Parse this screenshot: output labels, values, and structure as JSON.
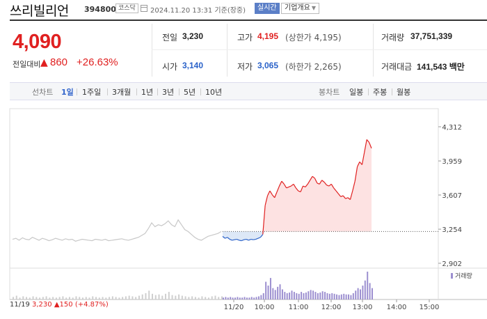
{
  "header": {
    "stock_name": "쓰리빌리언",
    "stock_code": "394800",
    "market": "코스닥",
    "timestamp": "2024.11.20 13:31 기준(장중)",
    "realtime_label": "실시간",
    "company_overview_label": "기업개요"
  },
  "quote": {
    "price": "4,090",
    "change_label": "전일대비",
    "change_direction": "up",
    "change_amount": "860",
    "change_pct": "+26.63%",
    "prev_close_label": "전일",
    "prev_close": "3,230",
    "high_label": "고가",
    "high": "4,195",
    "upper_limit": "(상한가 4,195)",
    "volume_label": "거래량",
    "volume": "37,751,339",
    "open_label": "시가",
    "open": "3,140",
    "low_label": "저가",
    "low": "3,065",
    "lower_limit": "(하한가 2,265)",
    "value_label": "거래대금",
    "trade_value": "141,543 백만"
  },
  "periods": {
    "line_chart_label": "선차트",
    "line_items": [
      "1일",
      "1주일",
      "3개월",
      "1년",
      "3년",
      "5년",
      "10년"
    ],
    "selected": "1일",
    "candle_chart_label": "봉차트",
    "candle_items": [
      "일봉",
      "주봉",
      "월봉"
    ]
  },
  "colors": {
    "up": "#e02020",
    "down": "#2a62c9",
    "volume": "#9c8fd0",
    "prev_day": "#c8c8c8"
  },
  "chart_data": {
    "type": "area",
    "y_ticks": [
      "4,312",
      "3,959",
      "3,607",
      "3,254",
      "2,902"
    ],
    "ylim": [
      2902,
      4312
    ],
    "baseline": 3230,
    "x_ticks": [
      "11/20",
      "10:00",
      "11:00",
      "12:00",
      "13:00",
      "14:00",
      "15:00"
    ],
    "prev_day_label": "11/19",
    "prev_day_close": "3,230",
    "prev_day_change": "150",
    "prev_day_change_pct": "(+4.87%)",
    "volume_label": "거래량",
    "prev_day_series": [
      3150,
      3160,
      3140,
      3165,
      3150,
      3145,
      3170,
      3155,
      3140,
      3160,
      3150,
      3135,
      3145,
      3160,
      3150,
      3140,
      3155,
      3145,
      3150,
      3130,
      3140,
      3150,
      3145,
      3140,
      3135,
      3150,
      3145,
      3140,
      3150,
      3135,
      3140,
      3145,
      3150,
      3155,
      3145,
      3140,
      3150,
      3160,
      3170,
      3190,
      3210,
      3260,
      3320,
      3280,
      3300,
      3290,
      3310,
      3340,
      3300,
      3280,
      3350,
      3300,
      3250,
      3230,
      3200,
      3170,
      3150,
      3140,
      3160,
      3180,
      3190,
      3200,
      3210,
      3230
    ],
    "today_series": [
      3180,
      3160,
      3170,
      3150,
      3140,
      3145,
      3150,
      3140,
      3135,
      3145,
      3150,
      3140,
      3150,
      3145,
      3150,
      3160,
      3170,
      3200,
      3500,
      3600,
      3650,
      3610,
      3580,
      3640,
      3700,
      3750,
      3720,
      3680,
      3690,
      3700,
      3720,
      3680,
      3650,
      3640,
      3700,
      3690,
      3720,
      3760,
      3800,
      3780,
      3730,
      3720,
      3760,
      3740,
      3710,
      3700,
      3720,
      3680,
      3650,
      3620,
      3590,
      3600,
      3570,
      3580,
      3560,
      3650,
      3750,
      3900,
      3950,
      3920,
      4050,
      4180,
      4150,
      4090
    ],
    "prev_day_volume": [
      4,
      6,
      3,
      5,
      4,
      3,
      5,
      4,
      3,
      4,
      5,
      3,
      4,
      3,
      4,
      5,
      3,
      4,
      3,
      5,
      4,
      3,
      4,
      3,
      5,
      4,
      3,
      4,
      3,
      4,
      5,
      4,
      3,
      4,
      5,
      6,
      5,
      4,
      6,
      8,
      10,
      14,
      9,
      7,
      8,
      6,
      9,
      12,
      7,
      6,
      8,
      6,
      5,
      4,
      5,
      4,
      3,
      5,
      4,
      3,
      5,
      6,
      4,
      5
    ],
    "today_volume": [
      3,
      4,
      3,
      4,
      3,
      3,
      4,
      3,
      3,
      4,
      3,
      3,
      4,
      3,
      4,
      5,
      7,
      10,
      28,
      22,
      34,
      18,
      15,
      20,
      24,
      16,
      12,
      10,
      11,
      14,
      12,
      10,
      9,
      12,
      10,
      11,
      13,
      15,
      14,
      12,
      10,
      11,
      13,
      12,
      10,
      9,
      10,
      9,
      8,
      7,
      8,
      9,
      8,
      8,
      7,
      10,
      14,
      18,
      16,
      22,
      30,
      44,
      26,
      18
    ]
  }
}
